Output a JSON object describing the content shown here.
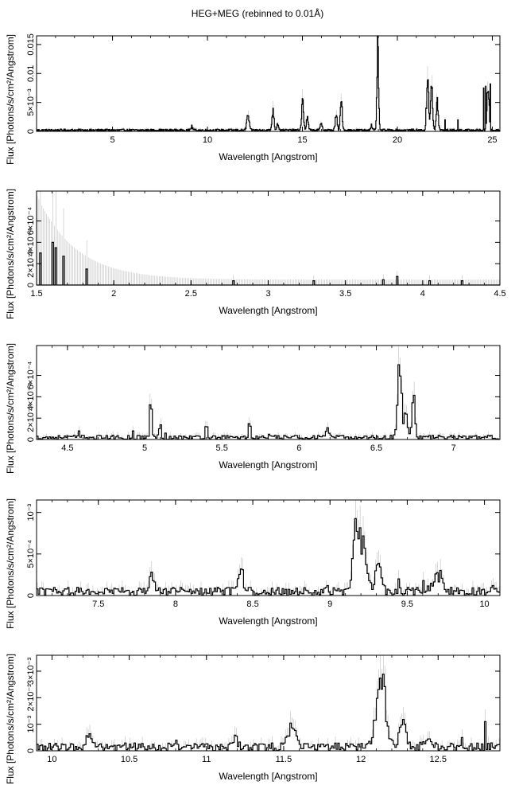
{
  "page": {
    "title": "HEG+MEG (rebinned to 0.01Å)"
  },
  "colors": {
    "line": "#000000",
    "errorbar": "#bdbdbd",
    "background": "#ffffff"
  },
  "chart_data": [
    {
      "type": "line",
      "style": "histogram-step",
      "xlabel": "Wavelength [Angstrom]",
      "ylabel": "Flux [Photons/s/cm²/Angstrom]",
      "xlim": [
        1.0,
        25.4
      ],
      "ylim": [
        0,
        0.0165
      ],
      "xticks": [
        {
          "v": 5,
          "label": "5"
        },
        {
          "v": 10,
          "label": "10"
        },
        {
          "v": 15,
          "label": "15"
        },
        {
          "v": 20,
          "label": "20"
        },
        {
          "v": 25,
          "label": "25"
        }
      ],
      "yticks": [
        {
          "v": 0,
          "label": "0"
        },
        {
          "v": 0.005,
          "label": "5×10⁻³"
        },
        {
          "v": 0.01,
          "label": "0.01"
        },
        {
          "v": 0.015,
          "label": "0.015"
        }
      ],
      "base": 0.0002,
      "peaks": [
        {
          "x": 9.17,
          "y": 0.0006,
          "w": 0.05
        },
        {
          "x": 12.13,
          "y": 0.0026,
          "w": 0.06
        },
        {
          "x": 13.45,
          "y": 0.0035,
          "w": 0.05
        },
        {
          "x": 13.7,
          "y": 0.0012,
          "w": 0.05
        },
        {
          "x": 15.01,
          "y": 0.005,
          "w": 0.05
        },
        {
          "x": 15.26,
          "y": 0.002,
          "w": 0.05
        },
        {
          "x": 16.0,
          "y": 0.0012,
          "w": 0.05
        },
        {
          "x": 16.78,
          "y": 0.0025,
          "w": 0.05
        },
        {
          "x": 17.05,
          "y": 0.005,
          "w": 0.05
        },
        {
          "x": 18.63,
          "y": 0.0008,
          "w": 0.05
        },
        {
          "x": 18.97,
          "y": 0.016,
          "w": 0.04
        },
        {
          "x": 21.6,
          "y": 0.0095,
          "w": 0.05
        },
        {
          "x": 21.8,
          "y": 0.008,
          "w": 0.05
        },
        {
          "x": 22.1,
          "y": 0.005,
          "w": 0.05
        },
        {
          "x": 24.78,
          "y": 0.008,
          "w": 0.05
        }
      ],
      "spikes": [
        {
          "x": 21.5,
          "y": 0.004
        },
        {
          "x": 22.5,
          "y": 0.002
        },
        {
          "x": 23.2,
          "y": 0.002
        },
        {
          "x": 24.55,
          "y": 0.0075
        },
        {
          "x": 24.65,
          "y": 0.0078
        },
        {
          "x": 24.9,
          "y": 0.0082
        }
      ]
    },
    {
      "type": "line",
      "style": "histogram-step",
      "xlabel": "Wavelength [Angstrom]",
      "ylabel": "Flux [Photons/s/cm²/Angstrom]",
      "xlim": [
        1.5,
        4.5
      ],
      "ylim": [
        0,
        0.00088
      ],
      "xticks": [
        {
          "v": 1.5,
          "label": "1.5"
        },
        {
          "v": 2,
          "label": "2"
        },
        {
          "v": 2.5,
          "label": "2.5"
        },
        {
          "v": 3,
          "label": "3"
        },
        {
          "v": 3.5,
          "label": "3.5"
        },
        {
          "v": 4,
          "label": "4"
        },
        {
          "v": 4.5,
          "label": "4.5"
        }
      ],
      "yticks": [
        {
          "v": 0,
          "label": "0"
        },
        {
          "v": 0.0002,
          "label": "2×10⁻⁴"
        },
        {
          "v": 0.0004,
          "label": "4×10⁻⁴"
        },
        {
          "v": 0.0006,
          "label": "6×10⁻⁴"
        }
      ],
      "base": 0.0,
      "peaks": [],
      "spikes": [
        {
          "x": 1.52,
          "y": 0.0003
        },
        {
          "x": 1.6,
          "y": 0.0004
        },
        {
          "x": 1.62,
          "y": 0.00035
        },
        {
          "x": 1.68,
          "y": 0.00027
        },
        {
          "x": 1.82,
          "y": 0.00015
        },
        {
          "x": 2.78,
          "y": 4e-05
        },
        {
          "x": 3.3,
          "y": 4e-05
        },
        {
          "x": 3.74,
          "y": 5e-05
        },
        {
          "x": 3.84,
          "y": 8e-05
        },
        {
          "x": 4.05,
          "y": 4e-05
        },
        {
          "x": 4.25,
          "y": 4e-05
        }
      ]
    },
    {
      "type": "line",
      "style": "histogram-step",
      "xlabel": "Wavelength [Angstrom]",
      "ylabel": "Flux [Photons/s/cm²/Angstrom]",
      "xlim": [
        4.3,
        7.3
      ],
      "ylim": [
        0,
        0.00088
      ],
      "xticks": [
        {
          "v": 4.5,
          "label": "4.5"
        },
        {
          "v": 5,
          "label": "5"
        },
        {
          "v": 5.5,
          "label": "5.5"
        },
        {
          "v": 6,
          "label": "6"
        },
        {
          "v": 6.5,
          "label": "6.5"
        },
        {
          "v": 7,
          "label": "7"
        }
      ],
      "yticks": [
        {
          "v": 0,
          "label": "0"
        },
        {
          "v": 0.0002,
          "label": "2×10⁻⁴"
        },
        {
          "v": 0.0004,
          "label": "4×10⁻⁴"
        },
        {
          "v": 0.0006,
          "label": "6×10⁻⁴"
        }
      ],
      "base": 2e-05,
      "peaks": [
        {
          "x": 5.04,
          "y": 0.00038,
          "w": 0.006
        },
        {
          "x": 5.1,
          "y": 0.00015,
          "w": 0.006
        },
        {
          "x": 5.4,
          "y": 0.00012,
          "w": 0.006
        },
        {
          "x": 5.68,
          "y": 0.00014,
          "w": 0.006
        },
        {
          "x": 6.18,
          "y": 8e-05,
          "w": 0.01
        },
        {
          "x": 6.65,
          "y": 0.00075,
          "w": 0.012
        },
        {
          "x": 6.69,
          "y": 0.00025,
          "w": 0.01
        },
        {
          "x": 6.74,
          "y": 0.0004,
          "w": 0.01
        }
      ],
      "spikes": [
        {
          "x": 4.57,
          "y": 8e-05
        },
        {
          "x": 4.93,
          "y": 8e-05
        },
        {
          "x": 5.14,
          "y": 6e-05
        },
        {
          "x": 5.81,
          "y": 5e-05
        }
      ]
    },
    {
      "type": "line",
      "style": "histogram-step",
      "xlabel": "Wavelength [Angstrom]",
      "ylabel": "Flux [Photons/s/cm²/Angstrom]",
      "xlim": [
        7.1,
        10.1
      ],
      "ylim": [
        0,
        0.00115
      ],
      "xticks": [
        {
          "v": 7.5,
          "label": "7.5"
        },
        {
          "v": 8,
          "label": "8"
        },
        {
          "v": 8.5,
          "label": "8.5"
        },
        {
          "v": 9,
          "label": "9"
        },
        {
          "v": 9.5,
          "label": "9.5"
        },
        {
          "v": 10,
          "label": "10"
        }
      ],
      "yticks": [
        {
          "v": 0,
          "label": "0"
        },
        {
          "v": 0.0005,
          "label": "5×10⁻⁴"
        },
        {
          "v": 0.001,
          "label": "10⁻³"
        }
      ],
      "base": 5e-05,
      "peaks": [
        {
          "x": 7.85,
          "y": 0.00018,
          "w": 0.015
        },
        {
          "x": 8.42,
          "y": 0.00032,
          "w": 0.015
        },
        {
          "x": 9.17,
          "y": 0.00085,
          "w": 0.02
        },
        {
          "x": 9.22,
          "y": 0.0005,
          "w": 0.02
        },
        {
          "x": 9.31,
          "y": 0.0003,
          "w": 0.02
        },
        {
          "x": 9.7,
          "y": 0.0002,
          "w": 0.03
        }
      ],
      "spikes": [
        {
          "x": 8.98,
          "y": 0.00012
        },
        {
          "x": 9.45,
          "y": 0.0002
        },
        {
          "x": 9.6,
          "y": 0.00018
        },
        {
          "x": 10.05,
          "y": 0.00012
        }
      ]
    },
    {
      "type": "line",
      "style": "histogram-step",
      "xlabel": "Wavelength [Angstrom]",
      "ylabel": "Flux [Photons/s/cm²/Angstrom]",
      "xlim": [
        9.9,
        12.9
      ],
      "ylim": [
        0,
        0.0036
      ],
      "xticks": [
        {
          "v": 10,
          "label": "10"
        },
        {
          "v": 10.5,
          "label": "10.5"
        },
        {
          "v": 11,
          "label": "11"
        },
        {
          "v": 11.5,
          "label": "11.5"
        },
        {
          "v": 12,
          "label": "12"
        },
        {
          "v": 12.5,
          "label": "12.5"
        }
      ],
      "yticks": [
        {
          "v": 0,
          "label": "0"
        },
        {
          "v": 0.001,
          "label": "10⁻³"
        },
        {
          "v": 0.002,
          "label": "2×10⁻³"
        },
        {
          "v": 0.003,
          "label": "3×10⁻³"
        }
      ],
      "base": 0.00015,
      "peaks": [
        {
          "x": 10.24,
          "y": 0.0004,
          "w": 0.02
        },
        {
          "x": 11.18,
          "y": 0.0003,
          "w": 0.02
        },
        {
          "x": 11.55,
          "y": 0.0007,
          "w": 0.025
        },
        {
          "x": 12.13,
          "y": 0.0026,
          "w": 0.03
        },
        {
          "x": 12.27,
          "y": 0.0008,
          "w": 0.02
        },
        {
          "x": 12.43,
          "y": 0.0004,
          "w": 0.02
        }
      ],
      "spikes": [
        {
          "x": 10.8,
          "y": 0.0004
        },
        {
          "x": 12.8,
          "y": 0.0011
        },
        {
          "x": 12.65,
          "y": 0.0005
        }
      ]
    }
  ]
}
